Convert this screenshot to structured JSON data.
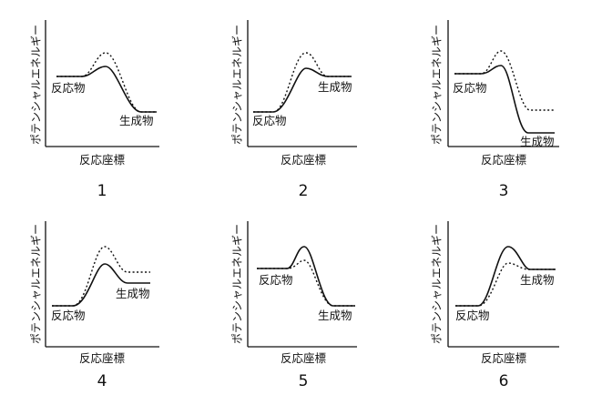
{
  "figure": {
    "y_axis_label": "ポテンシャルエネルギー",
    "x_axis_label": "反応座標",
    "reactant_label": "反応物",
    "product_label": "生成物",
    "curve_styles": [
      "solid",
      "dotted"
    ]
  },
  "panels": [
    {
      "number": "1",
      "reactant_level": "high",
      "product_level": "low",
      "solid_peak": "lower",
      "dotted_peak": "higher",
      "dotted_reactant": "same",
      "dotted_product": "same"
    },
    {
      "number": "2",
      "reactant_level": "low",
      "product_level": "high",
      "solid_peak": "lower",
      "dotted_peak": "higher",
      "dotted_reactant": "same",
      "dotted_product": "same"
    },
    {
      "number": "3",
      "reactant_level": "high",
      "product_level": "low",
      "solid_peak": "lower",
      "dotted_peak": "higher",
      "dotted_reactant": "same",
      "dotted_product": "higher"
    },
    {
      "number": "4",
      "reactant_level": "low",
      "product_level": "high",
      "solid_peak": "lower",
      "dotted_peak": "higher",
      "dotted_reactant": "same",
      "dotted_product": "higher"
    },
    {
      "number": "5",
      "reactant_level": "high",
      "product_level": "low",
      "solid_peak": "higher",
      "dotted_peak": "lower",
      "dotted_reactant": "same",
      "dotted_product": "same"
    },
    {
      "number": "6",
      "reactant_level": "low",
      "product_level": "high",
      "solid_peak": "higher",
      "dotted_peak": "lower",
      "dotted_reactant": "same",
      "dotted_product": "same"
    }
  ]
}
